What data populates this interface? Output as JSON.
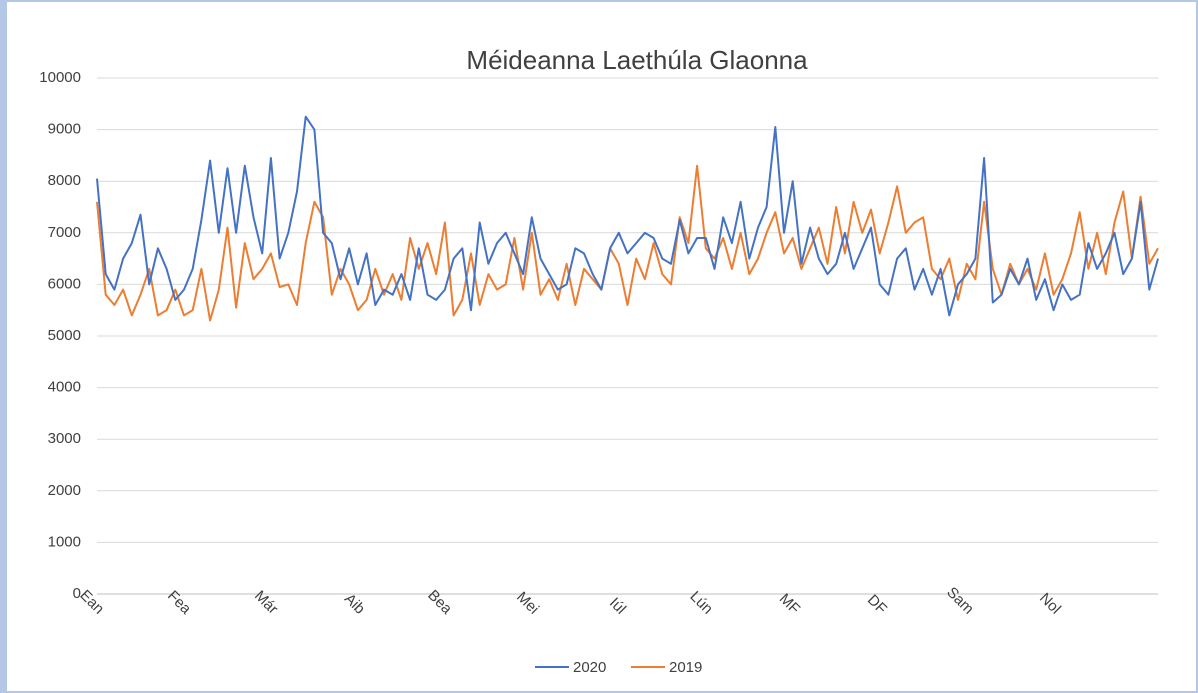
{
  "chart_data": {
    "type": "line",
    "title": "Méideanna Laethúla Glaonna",
    "categories": [
      "Ean",
      null,
      null,
      null,
      null,
      null,
      null,
      null,
      null,
      null,
      "Fea",
      null,
      null,
      null,
      null,
      null,
      null,
      null,
      null,
      null,
      "Már",
      null,
      null,
      null,
      null,
      null,
      null,
      null,
      null,
      null,
      "Aib",
      null,
      null,
      null,
      null,
      null,
      null,
      null,
      null,
      null,
      "Bea",
      null,
      null,
      null,
      null,
      null,
      null,
      null,
      null,
      null,
      "Mei",
      null,
      null,
      null,
      null,
      null,
      null,
      null,
      null,
      null,
      "Iúl",
      null,
      null,
      null,
      null,
      null,
      null,
      null,
      null,
      null,
      "Lún",
      null,
      null,
      null,
      null,
      null,
      null,
      null,
      null,
      null,
      "MF",
      null,
      null,
      null,
      null,
      null,
      null,
      null,
      null,
      null,
      "DF",
      null,
      null,
      null,
      null,
      null,
      null,
      null,
      null,
      null,
      "Sam",
      null,
      null,
      null,
      null,
      null,
      null,
      null,
      null,
      null,
      "Nol",
      null,
      null,
      null,
      null,
      null,
      null,
      null,
      null,
      null,
      null,
      null,
      null
    ],
    "series": [
      {
        "name": "2020",
        "color": "#4472c4",
        "values": [
          8050,
          6200,
          5900,
          6500,
          6800,
          7350,
          6000,
          6700,
          6300,
          5700,
          5900,
          6300,
          7250,
          8400,
          7000,
          8250,
          7000,
          8300,
          7300,
          6600,
          8450,
          6500,
          7000,
          7800,
          9250,
          9000,
          7000,
          6800,
          6100,
          6700,
          6000,
          6600,
          5600,
          5900,
          5800,
          6200,
          5700,
          6700,
          5800,
          5700,
          5900,
          6500,
          6700,
          5500,
          7200,
          6400,
          6800,
          7000,
          6600,
          6200,
          7300,
          6500,
          6200,
          5900,
          6000,
          6700,
          6600,
          6200,
          5900,
          6700,
          7000,
          6600,
          6800,
          7000,
          6900,
          6500,
          6400,
          7250,
          6600,
          6900,
          6900,
          6300,
          7300,
          6800,
          7600,
          6500,
          7100,
          7500,
          9050,
          7000,
          8000,
          6400,
          7100,
          6500,
          6200,
          6400,
          7000,
          6300,
          6700,
          7100,
          6000,
          5800,
          6500,
          6700,
          5900,
          6300,
          5800,
          6300,
          5400,
          6000,
          6200,
          6500,
          8450,
          5650,
          5800,
          6300,
          6000,
          6500,
          5700,
          6100,
          5500,
          6000,
          5700,
          5800,
          6800,
          6300,
          6600,
          7000,
          6200,
          6500,
          7600,
          5900,
          6500
        ]
      },
      {
        "name": "2019",
        "color": "#ed7d31",
        "values": [
          7600,
          5800,
          5600,
          5900,
          5400,
          5800,
          6300,
          5400,
          5500,
          5900,
          5400,
          5500,
          6300,
          5300,
          5900,
          7100,
          5550,
          6800,
          6100,
          6300,
          6600,
          5950,
          6000,
          5600,
          6800,
          7600,
          7300,
          5800,
          6300,
          6000,
          5500,
          5700,
          6300,
          5800,
          6200,
          5700,
          6900,
          6300,
          6800,
          6200,
          7200,
          5400,
          5700,
          6600,
          5600,
          6200,
          5900,
          6000,
          6900,
          5900,
          7000,
          5800,
          6100,
          5700,
          6400,
          5600,
          6300,
          6100,
          5900,
          6700,
          6400,
          5600,
          6500,
          6100,
          6800,
          6200,
          6000,
          7300,
          6800,
          8300,
          6700,
          6500,
          6900,
          6300,
          7000,
          6200,
          6500,
          7000,
          7400,
          6600,
          6900,
          6300,
          6700,
          7100,
          6400,
          7500,
          6600,
          7600,
          7000,
          7450,
          6600,
          7200,
          7900,
          7000,
          7200,
          7300,
          6300,
          6100,
          6500,
          5700,
          6400,
          6100,
          7600,
          6300,
          5800,
          6400,
          6000,
          6300,
          5900,
          6600,
          5800,
          6100,
          6600,
          7400,
          6300,
          7000,
          6200,
          7200,
          7800,
          6500,
          7700,
          6400,
          6700
        ]
      }
    ],
    "ylim": [
      0,
      10000
    ],
    "yticks": [
      0,
      1000,
      2000,
      3000,
      4000,
      5000,
      6000,
      7000,
      8000,
      9000,
      10000
    ],
    "grid": true
  }
}
